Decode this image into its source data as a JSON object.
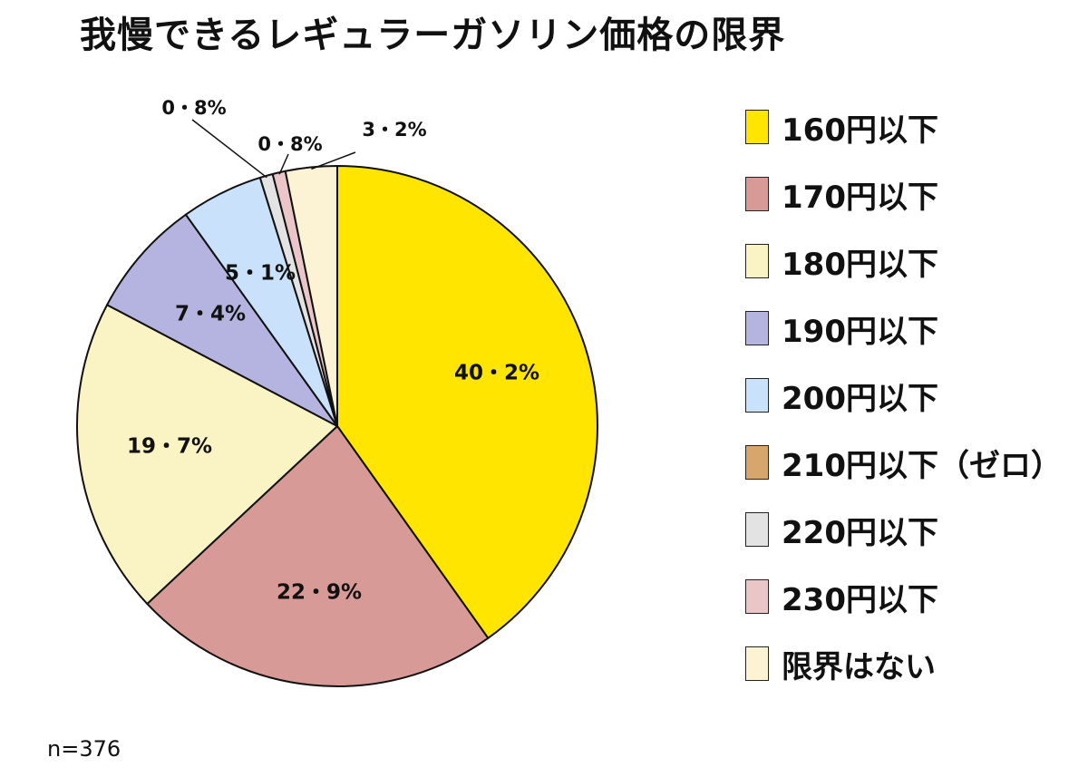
{
  "chart_data": {
    "type": "pie",
    "title": "我慢できるレギュラーガソリン価格の限界",
    "legend_position": "right",
    "slices": [
      {
        "label": "160円以下",
        "value": 40.2,
        "display": "40・2%",
        "color": "#FFE500"
      },
      {
        "label": "170円以下",
        "value": 22.9,
        "display": "22・9%",
        "color": "#D89A96"
      },
      {
        "label": "180円以下",
        "value": 19.7,
        "display": "19・7%",
        "color": "#FAF3C3"
      },
      {
        "label": "190円以下",
        "value": 7.4,
        "display": "7・4%",
        "color": "#B5B4E0"
      },
      {
        "label": "200円以下",
        "value": 5.1,
        "display": "5・1%",
        "color": "#C9E1FA"
      },
      {
        "label": "210円以下（ゼロ）",
        "value": 0,
        "display": "",
        "color": "#D6A66D"
      },
      {
        "label": "220円以下",
        "value": 0.8,
        "display": "0・8%",
        "color": "#E3E3E3"
      },
      {
        "label": "230円以下",
        "value": 0.8,
        "display": "0・8%",
        "color": "#EAC6C8"
      },
      {
        "label": "限界はない",
        "value": 3.2,
        "display": "3・2%",
        "color": "#FCF3D5"
      }
    ],
    "note": "n=376"
  }
}
